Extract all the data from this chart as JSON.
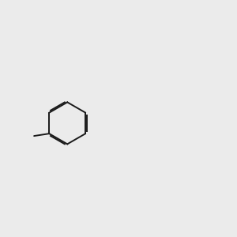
{
  "bg_color": "#ebebeb",
  "bond_color": "#1a1a1a",
  "font_size": 8.5,
  "lw": 1.4,
  "Cl_color": "#00aa00",
  "N_color": "#0000ee",
  "O_color": "#ff0000",
  "Br_color": "#996600",
  "carbonyl_O_color": "#000000"
}
